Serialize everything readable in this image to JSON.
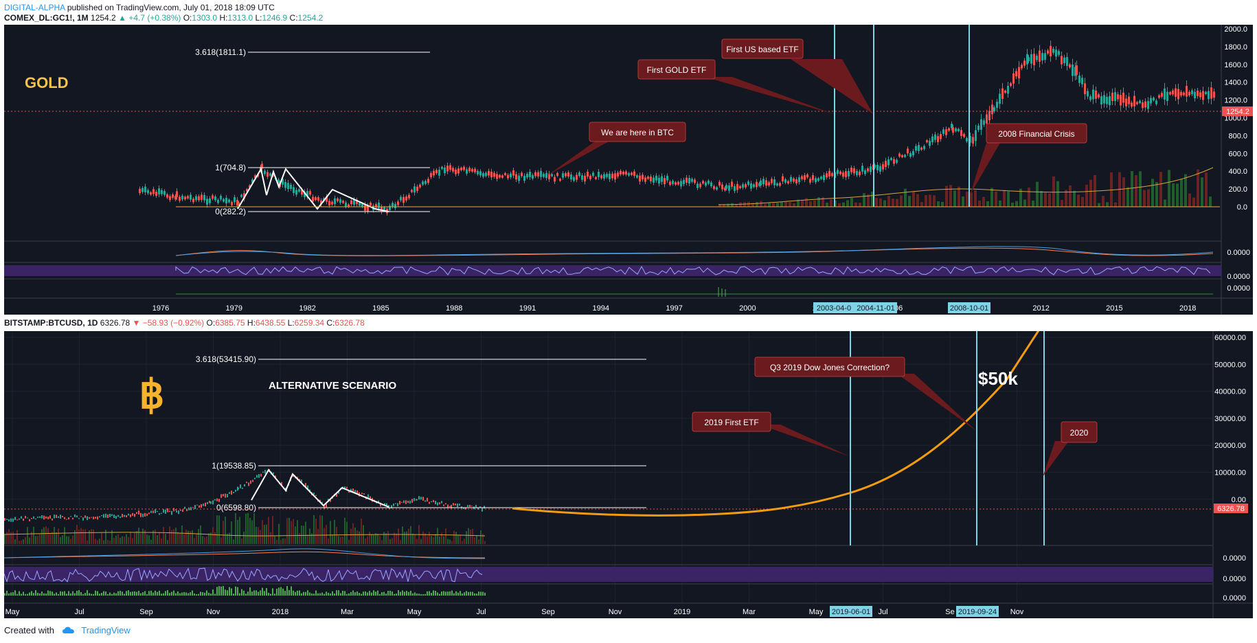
{
  "header": {
    "author": "DIGITAL-ALPHA",
    "published_text": "published on TradingView.com, July 01, 2018 18:09 UTC"
  },
  "gold_chart": {
    "symbol": "COMEX_DL:GC1!, 1M",
    "last": "1254.2",
    "change": "+4.7 (+0.38%)",
    "ohlc": {
      "o": "1303.0",
      "h": "1313.0",
      "l": "1246.9",
      "c": "1254.2"
    },
    "title": "GOLD",
    "price_axis": [
      "2000.0",
      "1800.0",
      "1600.0",
      "1400.0",
      "1200.0",
      "1000.0",
      "800.0",
      "600.0",
      "400.0",
      "200.0",
      "0.0"
    ],
    "current_price_label": "1254.2",
    "indicator_axis": [
      "0.0000",
      "0.0000",
      "0.0000"
    ],
    "time_axis": [
      "1976",
      "1979",
      "1982",
      "1985",
      "1988",
      "1991",
      "1994",
      "1997",
      "2000",
      "2003",
      "2006",
      "2009",
      "2012",
      "2015",
      "2018"
    ],
    "date_markers": [
      "2003-04-0",
      "2004-11-01",
      "2008-10-01"
    ],
    "fib_levels": [
      {
        "label": "3.618(1811.1)",
        "value": 1811.1
      },
      {
        "label": "1(704.8)",
        "value": 704.8
      },
      {
        "label": "0(282.2)",
        "value": 282.2
      }
    ],
    "annotations": {
      "us_etf": "First US based ETF",
      "gold_etf": "First GOLD ETF",
      "btc_here": "We are here in BTC",
      "crisis": "2008 Financial Crisis"
    }
  },
  "btc_chart": {
    "symbol": "BITSTAMP:BTCUSD, 1D",
    "last": "6326.78",
    "change": "−58.93 (−0.92%)",
    "ohlc": {
      "o": "6385.75",
      "h": "6438.55",
      "l": "6259.34",
      "c": "6326.78"
    },
    "title": "ALTERNATIVE SCENARIO",
    "logo_symbol": "฿",
    "price_axis": [
      "60000.00",
      "50000.00",
      "40000.00",
      "30000.00",
      "20000.00",
      "10000.00",
      "0.00"
    ],
    "current_price_label": "6326.78",
    "indicator_axis": [
      "0.0000",
      "0.0000",
      "0.0000"
    ],
    "time_axis": [
      "May",
      "Jul",
      "Sep",
      "Nov",
      "2018",
      "Mar",
      "May",
      "Jul",
      "Sep",
      "Nov",
      "2019",
      "Mar",
      "May",
      "Jul",
      "Se",
      "Nov"
    ],
    "date_markers": [
      "2019-06-01",
      "2019-09-24"
    ],
    "fib_levels": [
      {
        "label": "3.618(53415.90)",
        "value": 53415.9
      },
      {
        "label": "1(19538.85)",
        "value": 19538.85
      },
      {
        "label": "0(6598.80)",
        "value": 6598.8
      }
    ],
    "target_label": "$50k",
    "annotations": {
      "dow": "Q3 2019 Dow Jones Correction?",
      "first_etf": "2019 First ETF",
      "year_2020": "2020"
    }
  },
  "footer": {
    "created_with": "Created with",
    "brand": "TradingView"
  },
  "colors": {
    "background": "#131722",
    "bull": "#26a69a",
    "bear": "#ef5350",
    "gold_title": "#f7c34d",
    "btc_logo": "#f7b32b",
    "scenario_curve": "#f39c12",
    "marker_line": "#7fd3e6",
    "callout_fill": "#6b1b1e",
    "callout_border": "#b03a3a"
  }
}
